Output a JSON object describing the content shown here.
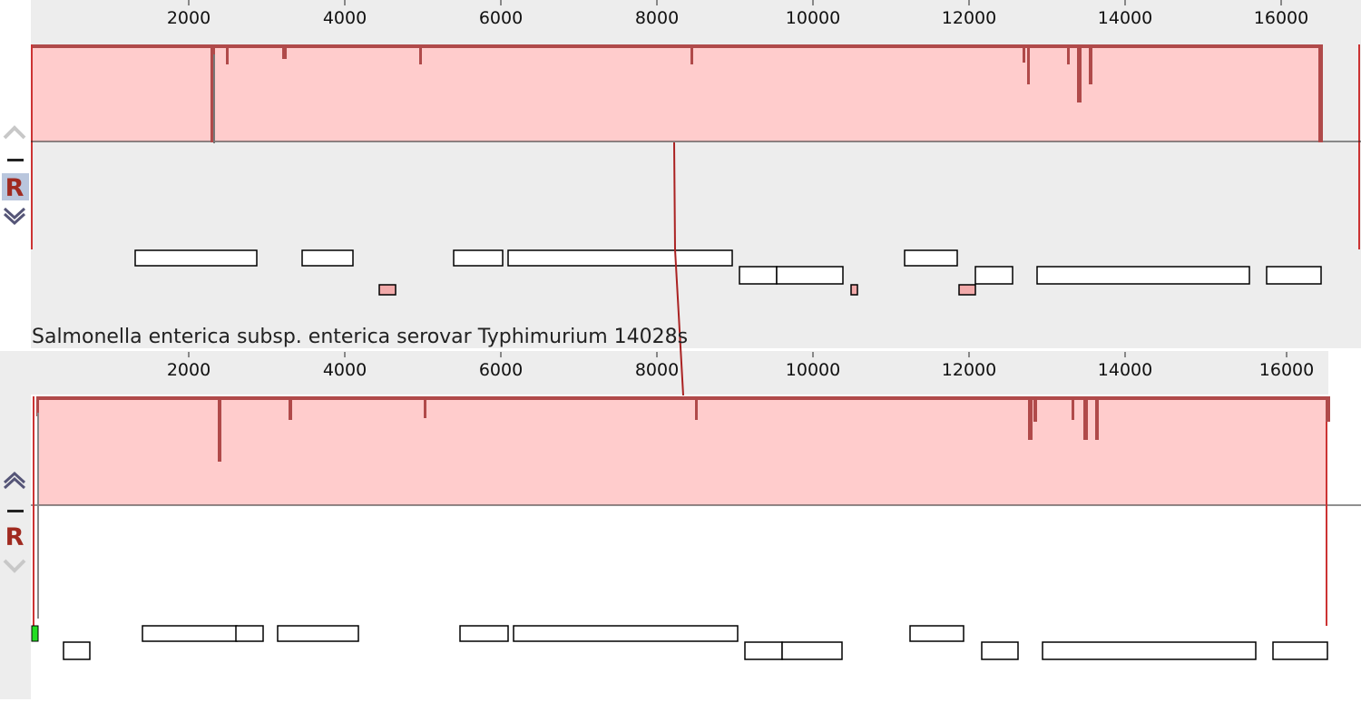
{
  "viewer": {
    "axis_ticks": [
      "2000",
      "4000",
      "6000",
      "8000",
      "10000",
      "12000",
      "14000",
      "16000"
    ],
    "colors": {
      "panel_bg": "#ededed",
      "lcb_fill": "#ffcccc",
      "lcb_edge": "#b04a4a",
      "connector": "#aa2222",
      "gene_fill": "#ffffff",
      "gene_stroke": "#000000",
      "highlight_fill": "#f2aaaa",
      "green_marker": "#22dd22",
      "control_active": "#a02a20",
      "control_disabled": "#c8c8c8",
      "control_arrow": "#555577"
    }
  },
  "panels": [
    {
      "genome_label": "",
      "controls": {
        "up": {
          "icon": "chevron-up-icon",
          "enabled": false
        },
        "minus": {
          "icon": "minus-icon"
        },
        "reference": {
          "label": "R",
          "selected": true
        },
        "down": {
          "icon": "chevron-down-icon",
          "enabled": true
        }
      }
    },
    {
      "genome_label": "Salmonella enterica subsp. enterica serovar Typhimurium 14028s",
      "controls": {
        "up": {
          "icon": "chevron-up-icon",
          "enabled": true
        },
        "minus": {
          "icon": "minus-icon"
        },
        "reference": {
          "label": "R",
          "selected": false
        },
        "down": {
          "icon": "chevron-down-icon",
          "enabled": false
        }
      }
    }
  ]
}
